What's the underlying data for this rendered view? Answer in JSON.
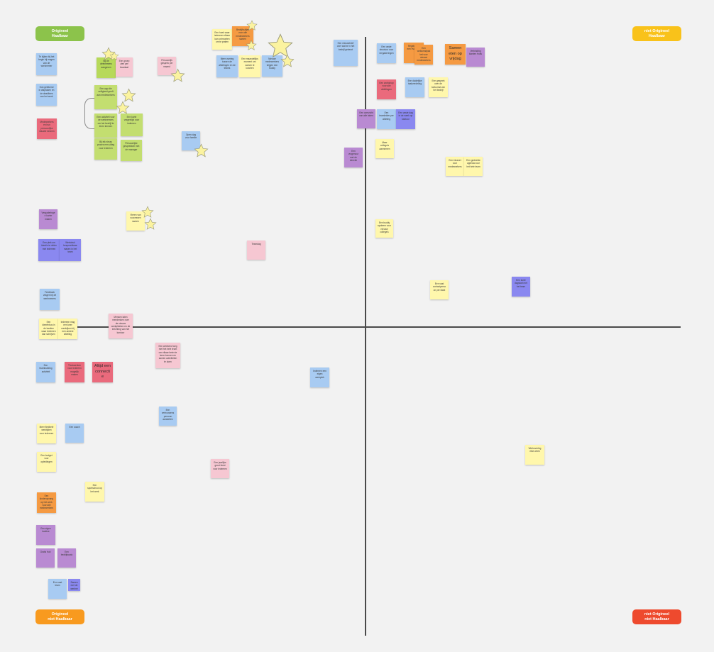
{
  "quadrants": [
    {
      "id": "tl",
      "label": "Origineel\nHaalbaar",
      "color": "#8cc34b"
    },
    {
      "id": "tr",
      "label": "niet Origineel\nHaalbaar",
      "color": "#f9c21a"
    },
    {
      "id": "bl",
      "label": "Origineel\nniet Haalbaar",
      "color": "#f89a1f"
    },
    {
      "id": "br",
      "label": "niet Origineel\nniet Haalbaar",
      "color": "#ee4a2e"
    }
  ],
  "notes": [
    {
      "c": "blue",
      "t": "Te kijken bij het begin bij vragen van de werknemer"
    },
    {
      "c": "blue",
      "t": "Ook getekend in afspraken en de deadlines van het werk"
    },
    {
      "c": "red",
      "t": "Medewerkers en hun persoonlijke situatie kennen"
    },
    {
      "c": "green",
      "t": "Bij de deelnemers aangeven"
    },
    {
      "c": "pink",
      "t": "Een groep zien per kwartaal"
    },
    {
      "c": "pink",
      "t": "Persoonlijk gesprek per maand"
    },
    {
      "c": "lgreen",
      "t": "Een app die veiligheid geeft aan medewerkers"
    },
    {
      "c": "lgreen",
      "t": "Een activiteit voor de werknemers om het bedrijf te leren kennen"
    },
    {
      "c": "lgreen",
      "t": "Een korte vragenlijst voor iedereen"
    },
    {
      "c": "lgreen",
      "t": "Bij elk nieuw proces een uitleg voor iedereen"
    },
    {
      "c": "lgreen",
      "t": "Persoonlijke gesprekken met de manager"
    },
    {
      "c": "yellow",
      "t": "Een hoek waar iedereen elkaar kan ontmoeten om te praten"
    },
    {
      "c": "orange",
      "t": "Bedrijfsuitjes voor alle medewerkers samen"
    },
    {
      "c": "blue",
      "t": "Meer overleg tussen de afdelingen en de teams"
    },
    {
      "c": "yellow",
      "t": "Een maandelijks moment om samen te lunchen"
    },
    {
      "c": "blue",
      "t": "Nieuwe medewerkers krijgen een buddy"
    },
    {
      "c": "blue",
      "t": "Open dag voor familie"
    },
    {
      "c": "blue",
      "t": "Een nieuwsbrief over wat er in het bedrijf gebeurt"
    },
    {
      "c": "purple",
      "t": "Vergaderingen korter maken"
    },
    {
      "c": "violet",
      "t": "Een plek om ideeën te delen met iedereen"
    },
    {
      "c": "violet",
      "t": "Werkdruk bespreekbaar maken in het team"
    },
    {
      "c": "yellow",
      "t": "Vieren van successen samen"
    },
    {
      "c": "pink",
      "t": "Teamdag"
    },
    {
      "c": "blue",
      "t": "Feedback vragen bij de werknemers"
    },
    {
      "c": "yellow",
      "t": "Een ideeënbus in de kantine waar iedereen kan schrijven"
    },
    {
      "c": "yellow",
      "t": "Iedereen mag een keer meekijken bij een andere afdeling"
    },
    {
      "c": "pink",
      "t": "Mensen laten meedenken over de nieuwe werkplekken en de inrichting van het kantoor"
    },
    {
      "c": "pink",
      "t": "Een weekend weg met het hele team om elkaar beter te leren kennen en samen activiteiten te doen"
    },
    {
      "c": "blue",
      "t": "Een teambuilding activiteit"
    },
    {
      "c": "red",
      "t": "Thuiswerken voor iedereen mogelijk maken"
    },
    {
      "c": "red",
      "t": "Altijd een connectie"
    },
    {
      "c": "blue",
      "t": "Iedereen een eigen werkplek"
    },
    {
      "c": "yellow",
      "t": "Meer flexibele werktijden voor iedereen"
    },
    {
      "c": "blue",
      "t": "Een coach"
    },
    {
      "c": "yellow",
      "t": "Een vertrouwenspersoon aanstellen"
    },
    {
      "c": "yellow",
      "t": "Een budget voor opleidingen"
    },
    {
      "c": "orange",
      "t": "Een sportschool op het werk"
    },
    {
      "c": "pink",
      "t": "Een kinderopvang op het werk voor alle medewerkers"
    },
    {
      "c": "purple",
      "t": "Een jaarlijks groot feest voor iedereen"
    },
    {
      "c": "purple",
      "t": "Een eigen kantine"
    },
    {
      "c": "purple",
      "t": "Gratis fruit"
    },
    {
      "c": "blue",
      "t": "Een bedrijfsauto"
    },
    {
      "c": "violet",
      "t": "Een vast team"
    },
    {
      "c": "blue",
      "t": "Samen met de werknemers afspraken maken over de regels"
    },
    {
      "c": "blue",
      "t": "Een vaste structuur voor vergaderingen"
    },
    {
      "c": "blue",
      "t": "Regelmatig een evaluatie"
    },
    {
      "c": "orange",
      "t": "Een welkomstpakket voor nieuwe medewerkers"
    },
    {
      "c": "orange",
      "t": "Samen eten op vrijdag"
    },
    {
      "c": "orange",
      "t": "Verbinding klanten fruits"
    },
    {
      "c": "purple",
      "t": "Een workshop voor alle afdelingen"
    },
    {
      "c": "red",
      "t": "Een duidelijke taakverdeling"
    },
    {
      "c": "blue",
      "t": "Een gesprek over de toekomst van het bedrijf"
    },
    {
      "c": "yellow",
      "t": "Een overzicht van alle taken"
    },
    {
      "c": "purple",
      "t": "Een teamleider per afdeling"
    },
    {
      "c": "blue",
      "t": "Een vaste dag in de week op kantoor"
    },
    {
      "c": "violet",
      "t": "Meer collega's aannemen"
    },
    {
      "c": "yellow",
      "t": "Een vragenuur met de directie"
    },
    {
      "c": "purple",
      "t": "Een intranet voor medewerkers"
    },
    {
      "c": "yellow",
      "t": "Een gedeelde agenda voor het hele team"
    },
    {
      "c": "yellow",
      "t": "Een buddy systeem voor nieuwe collega's"
    },
    {
      "c": "yellow",
      "t": "Een vast contactpersoon per klant"
    },
    {
      "c": "yellow",
      "t": "Een korte dagstart met het team"
    },
    {
      "c": "yellow",
      "t": "Werkoverleg elke week"
    },
    {
      "c": "violet",
      "t": "Duidelijke doelen"
    },
    {
      "c": "blue",
      "t": "Een gesprek met een collega over de werkdruk"
    },
    {
      "c": "yellow",
      "t": "Een persoonlijk ontwikkelplan"
    }
  ]
}
